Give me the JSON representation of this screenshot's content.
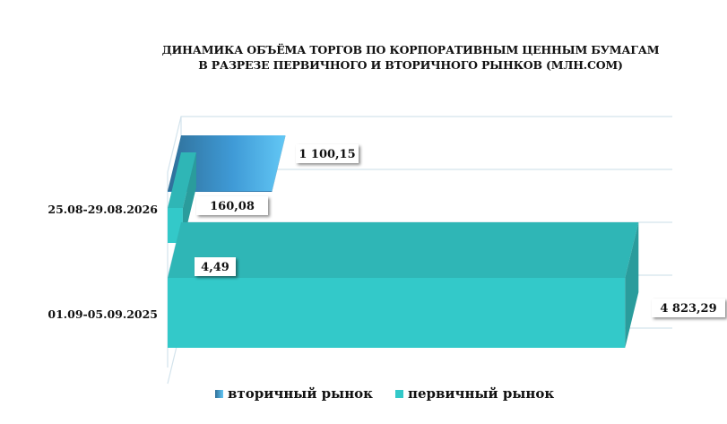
{
  "chart_data": {
    "type": "bar",
    "orientation": "horizontal",
    "style": "3d",
    "title": "ДИНАМИКА ОБЪЁМА ТОРГОВ ПО КОРПОРАТИВНЫМ ЦЕННЫМ БУМАГАМ В РАЗРЕЗЕ ПЕРВИЧНОГО И ВТОРИЧНОГО РЫНКОВ  (МЛН.СОМ)",
    "title_lines": [
      "ДИНАМИКА ОБЪЁМА ТОРГОВ ПО КОРПОРАТИВНЫМ ЦЕННЫМ БУМАГАМ",
      "В РАЗРЕЗЕ ПЕРВИЧНОГО И ВТОРИЧНОГО РЫНКОВ  (МЛН.СОМ)"
    ],
    "categories": [
      "25.08-29.08.2026",
      "01.09-05.09.2025"
    ],
    "series": [
      {
        "name": "вторичный рынок",
        "values": [
          1100.15,
          4.49
        ],
        "labels": [
          "1 100,15",
          "4,49"
        ],
        "color": "#3a8fc7"
      },
      {
        "name": "первичный рынок",
        "values": [
          160.08,
          4823.29
        ],
        "labels": [
          "160,08",
          "4 823,29"
        ],
        "color": "#33c9c9"
      }
    ],
    "xlim": [
      0,
      5000
    ],
    "grid": true,
    "legend": "bottom"
  },
  "legend": {
    "items": [
      {
        "label": "вторичный рынок",
        "color": "#3a8fc7"
      },
      {
        "label": "первичный рынок",
        "color": "#33c9c9"
      }
    ]
  }
}
